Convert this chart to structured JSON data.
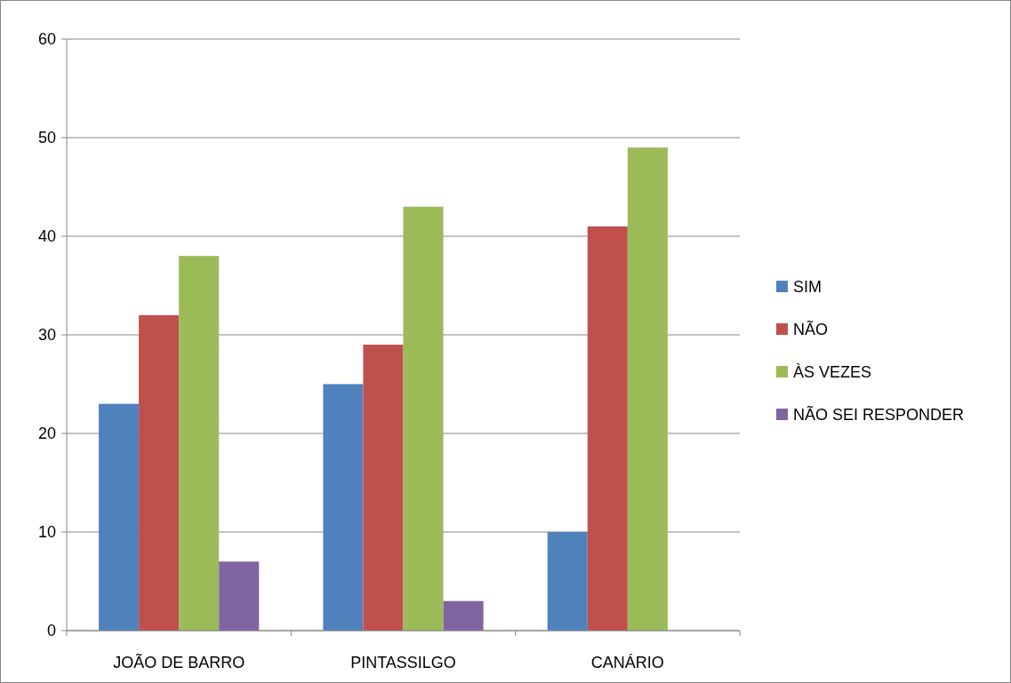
{
  "chart_data": {
    "type": "bar",
    "categories": [
      "JOÃO DE BARRO",
      "PINTASSILGO",
      "CANÁRIO"
    ],
    "series": [
      {
        "name": "SIM",
        "color": "#4f81bd",
        "values": [
          23,
          25,
          10
        ]
      },
      {
        "name": "NÃO",
        "color": "#c0504d",
        "values": [
          32,
          29,
          41
        ]
      },
      {
        "name": "ÀS VEZES",
        "color": "#9bbb59",
        "values": [
          38,
          43,
          49
        ]
      },
      {
        "name": "NÃO SEI RESPONDER",
        "color": "#8064a2",
        "values": [
          7,
          3,
          null
        ]
      }
    ],
    "ylim": [
      0,
      60
    ],
    "yticks": [
      0,
      10,
      20,
      30,
      40,
      50,
      60
    ],
    "grid": "y",
    "legend": "right"
  }
}
